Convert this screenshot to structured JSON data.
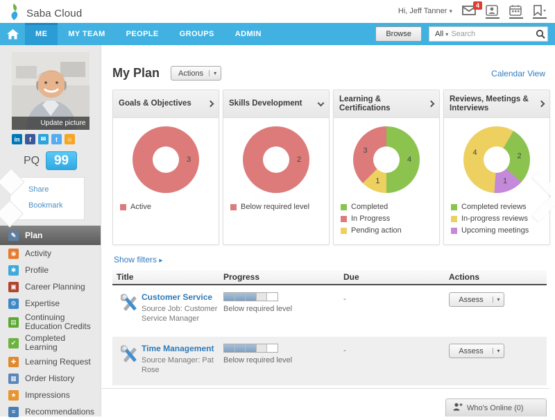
{
  "colors": {
    "nav_blue": "#41B1E1",
    "link_blue": "#2F7CC0",
    "badge_red": "#E03C31",
    "donut_red": "#DD7B7B",
    "donut_green": "#8CC34F",
    "donut_yellow": "#EDD060",
    "donut_purple": "#C489D8",
    "progress_fill": "#7E9FC2"
  },
  "icons": {
    "caret_down": "▾",
    "arrow_right": "▸"
  },
  "header": {
    "logo_text": "Saba Cloud",
    "greeting": "Hi, Jeff Tanner",
    "mail_badge": "4"
  },
  "nav": {
    "items": [
      {
        "label": "ME",
        "active": true
      },
      {
        "label": "MY TEAM",
        "active": false
      },
      {
        "label": "PEOPLE",
        "active": false
      },
      {
        "label": "GROUPS",
        "active": false
      },
      {
        "label": "ADMIN",
        "active": false
      }
    ],
    "browse_label": "Browse",
    "search_scope": "All",
    "search_placeholder": "Search"
  },
  "profile": {
    "update_picture_label": "Update picture",
    "pq_label": "PQ",
    "pq_value": "99",
    "share_label": "Share",
    "bookmark_label": "Bookmark",
    "social": [
      {
        "name": "linkedin",
        "glyph": "in",
        "color": "#0077B5"
      },
      {
        "name": "facebook",
        "glyph": "f",
        "color": "#3B5998"
      },
      {
        "name": "email-share",
        "glyph": "✉",
        "color": "#2BA3DC"
      },
      {
        "name": "twitter",
        "glyph": "t",
        "color": "#55ACEE"
      },
      {
        "name": "smiley",
        "glyph": "☺",
        "color": "#F5A623"
      }
    ]
  },
  "sidebar": {
    "menu": [
      {
        "label": "Plan",
        "glyph": "✎",
        "icon_bg": "#5E7FA3",
        "active": true
      },
      {
        "label": "Activity",
        "glyph": "◉",
        "icon_bg": "#E87A2E",
        "active": false
      },
      {
        "label": "Profile",
        "glyph": "✱",
        "icon_bg": "#3FA9DC",
        "active": false
      },
      {
        "label": "Career Planning",
        "glyph": "▣",
        "icon_bg": "#B0452F",
        "active": false
      },
      {
        "label": "Expertise",
        "glyph": "⚙",
        "icon_bg": "#3E87C8",
        "active": false
      },
      {
        "label": "Continuing Education Credits",
        "glyph": "▤",
        "icon_bg": "#5CA832",
        "active": false
      },
      {
        "label": "Completed Learning",
        "glyph": "✔",
        "icon_bg": "#6DB33F",
        "active": false
      },
      {
        "label": "Learning Request",
        "glyph": "✚",
        "icon_bg": "#E08A2E",
        "active": false
      },
      {
        "label": "Order History",
        "glyph": "▦",
        "icon_bg": "#5A87B8",
        "active": false
      },
      {
        "label": "Impressions",
        "glyph": "★",
        "icon_bg": "#E8952E",
        "active": false
      },
      {
        "label": "Recommendations",
        "glyph": "≡",
        "icon_bg": "#4A7FB5",
        "active": false
      }
    ]
  },
  "main": {
    "page_title": "My Plan",
    "actions_button": "Actions",
    "calendar_view_link": "Calendar View",
    "show_filters_link": "Show filters",
    "whos_online_label": "Who's Online (0)"
  },
  "chart_data": [
    {
      "type": "donut",
      "title": "Goals & Objectives",
      "start_angle": 0,
      "slices": [
        {
          "label": "Active",
          "value": 3,
          "color": "#DD7B7B"
        }
      ]
    },
    {
      "type": "donut",
      "title": "Skills Development",
      "start_angle": 0,
      "slices": [
        {
          "label": "Below required level",
          "value": 2,
          "color": "#DD7B7B"
        }
      ]
    },
    {
      "type": "donut",
      "title": "Learning & Certifications",
      "start_angle": 0,
      "draw_order": [
        0,
        2,
        1
      ],
      "slices": [
        {
          "label": "Completed",
          "value": 4,
          "color": "#8CC34F"
        },
        {
          "label": "In Progress",
          "value": 3,
          "color": "#DD7B7B"
        },
        {
          "label": "Pending action",
          "value": 1,
          "color": "#EDD060"
        }
      ]
    },
    {
      "type": "donut",
      "title": "Reviews, Meetings & Interviews",
      "start_angle": 30,
      "draw_order": [
        0,
        2,
        1
      ],
      "slices": [
        {
          "label": "Completed reviews",
          "value": 2,
          "color": "#8CC34F"
        },
        {
          "label": "In-progress reviews",
          "value": 4,
          "color": "#EDD060"
        },
        {
          "label": "Upcoming meetings",
          "value": 1,
          "color": "#C489D8"
        }
      ]
    }
  ],
  "table": {
    "columns": [
      "Title",
      "Progress",
      "Due",
      "Actions"
    ],
    "rows": [
      {
        "title": "Customer Service",
        "subtitle": "Source Job: Customer Service Manager",
        "progress": {
          "segments_total": 5,
          "segments_filled": 3,
          "label": "Below required level"
        },
        "due": "-",
        "action_label": "Assess"
      },
      {
        "title": "Time Management",
        "subtitle": "Source Manager: Pat Rose",
        "progress": {
          "segments_total": 5,
          "segments_filled": 3,
          "label": "Below required level"
        },
        "due": "-",
        "action_label": "Assess"
      }
    ]
  }
}
